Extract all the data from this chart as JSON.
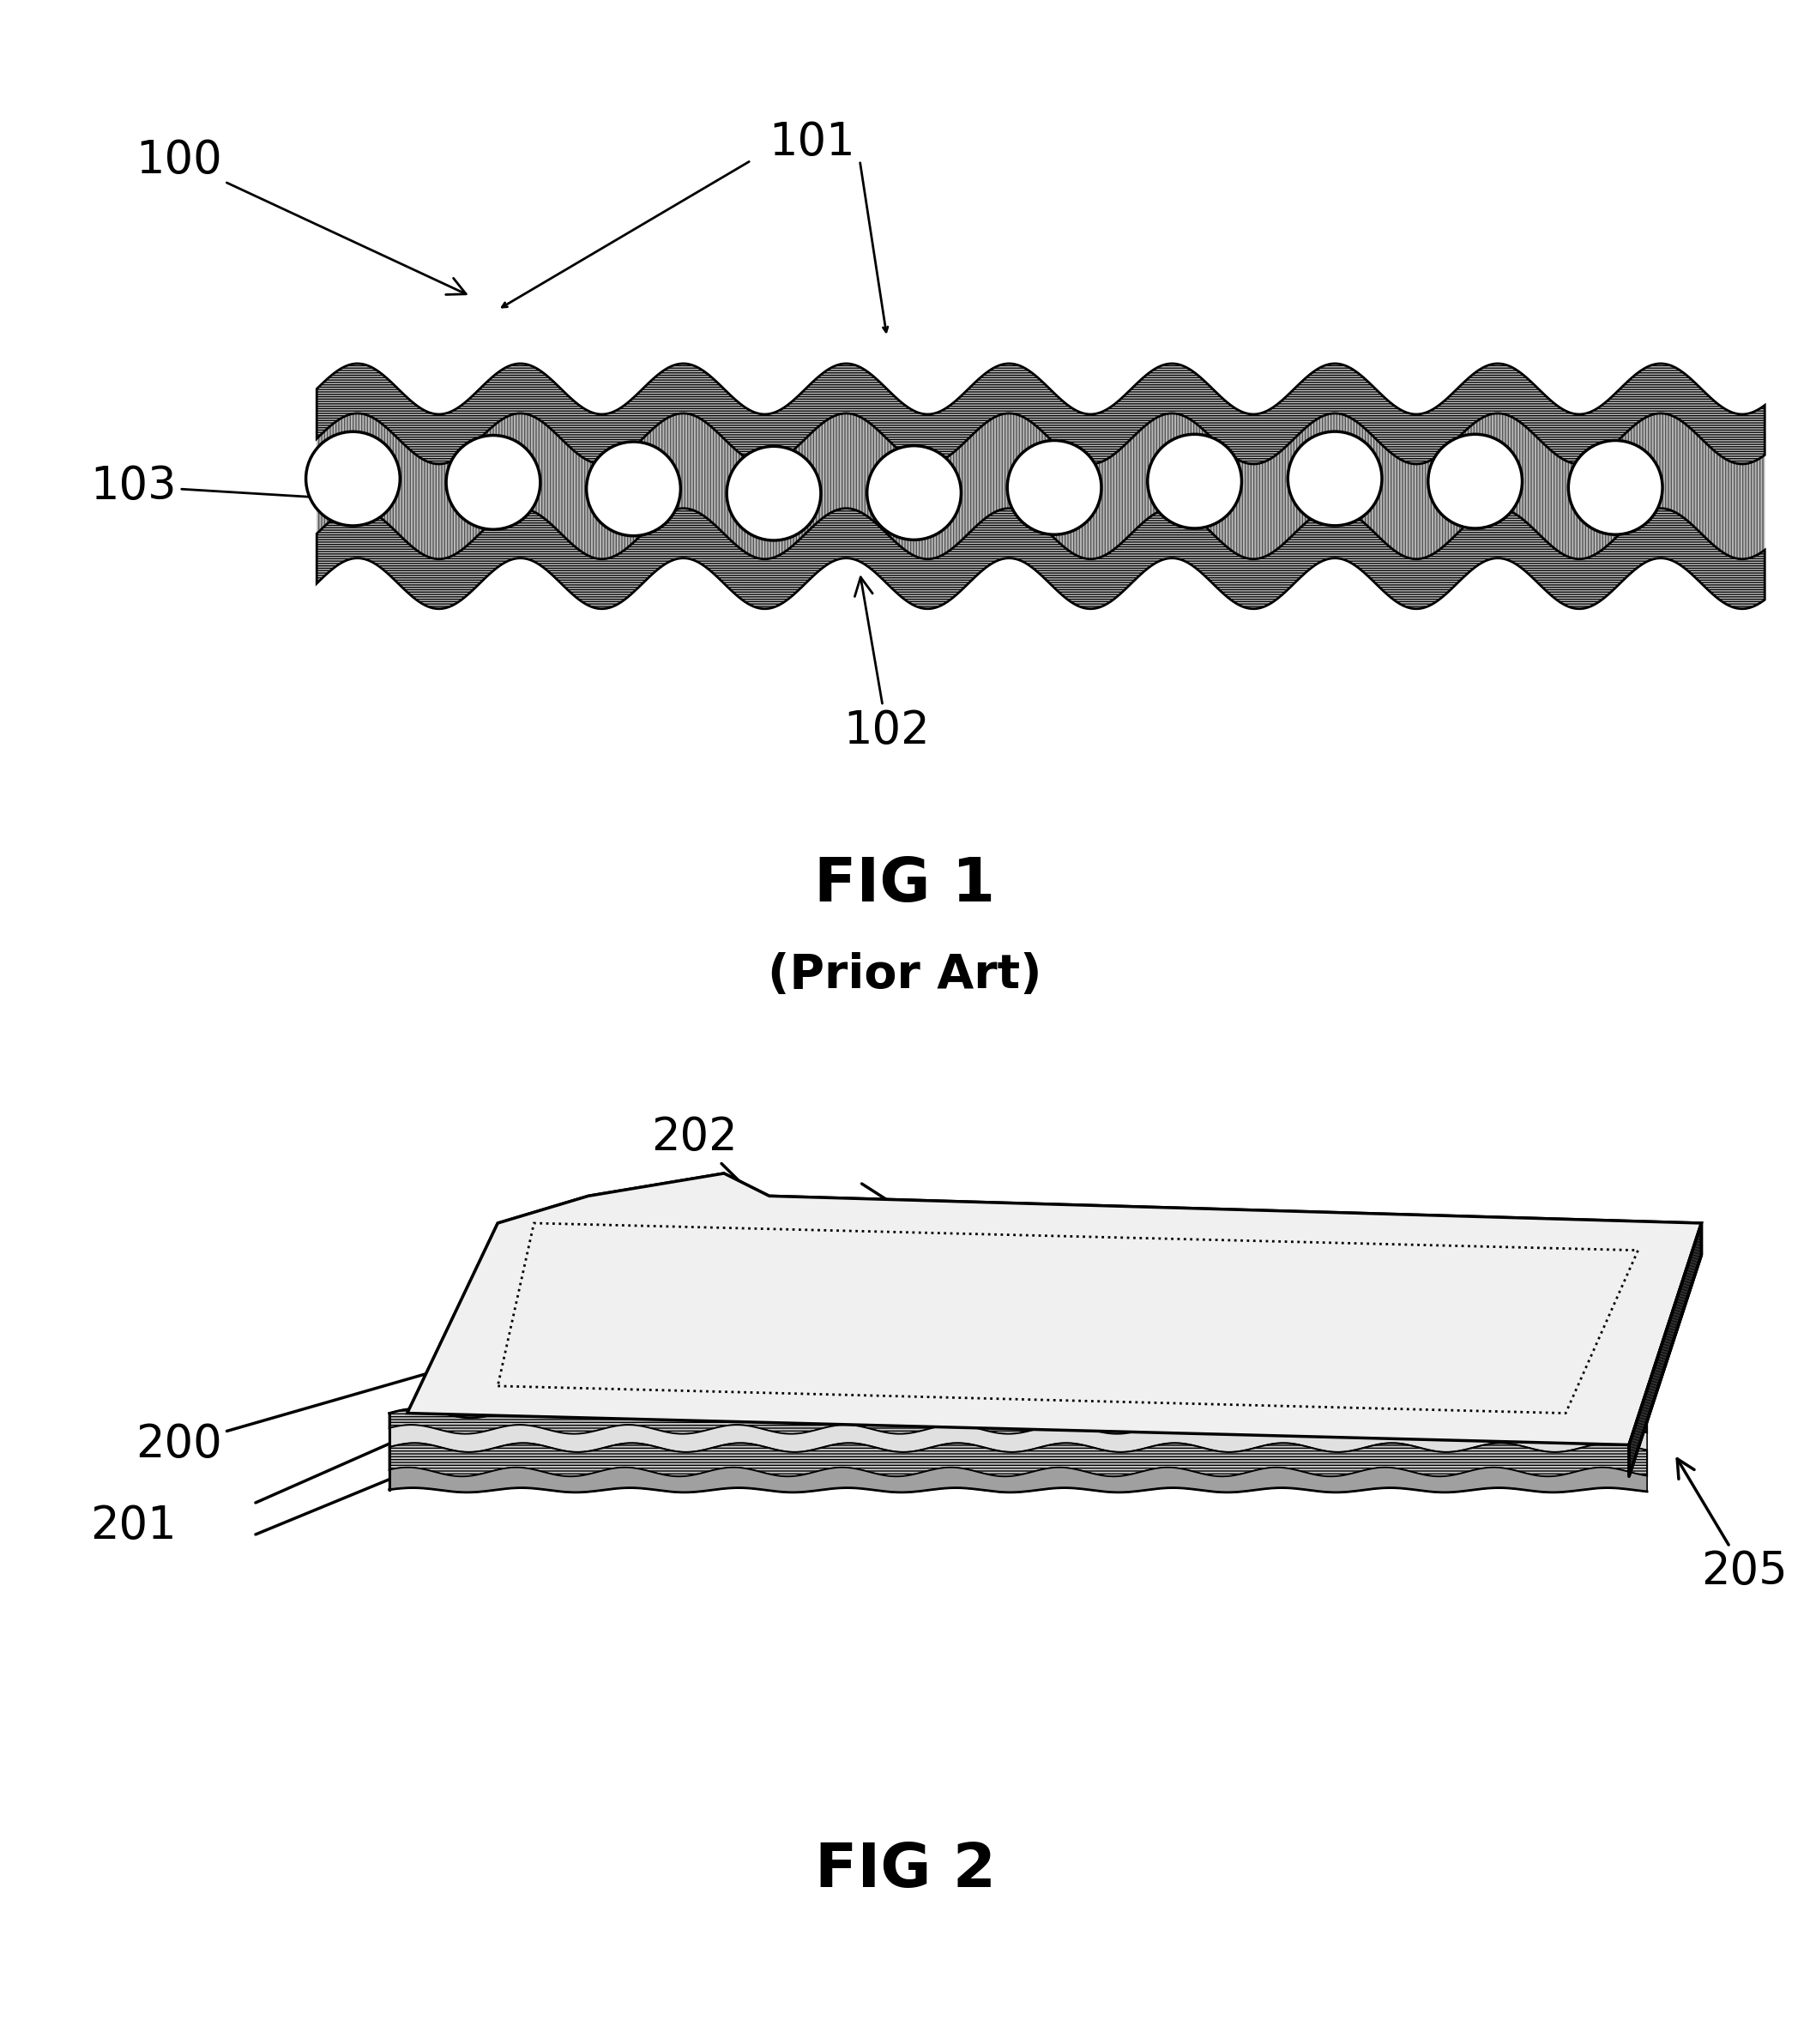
{
  "fig1_title": "FIG 1",
  "fig1_subtitle": "(Prior Art)",
  "fig2_title": "FIG 2",
  "label_100": "100",
  "label_101": "101",
  "label_102": "102",
  "label_103": "103",
  "label_200": "200",
  "label_201": "201",
  "label_202": "202",
  "label_205": "205",
  "bg_color": "#ffffff",
  "substrate_color": "#c8c8c8",
  "lc_color": "#c0c0c0",
  "top_face_color": "#f0f0f0",
  "side_face_color": "#b0b0b0",
  "title_fontsize": 52,
  "subtitle_fontsize": 40,
  "label_fontsize": 38
}
